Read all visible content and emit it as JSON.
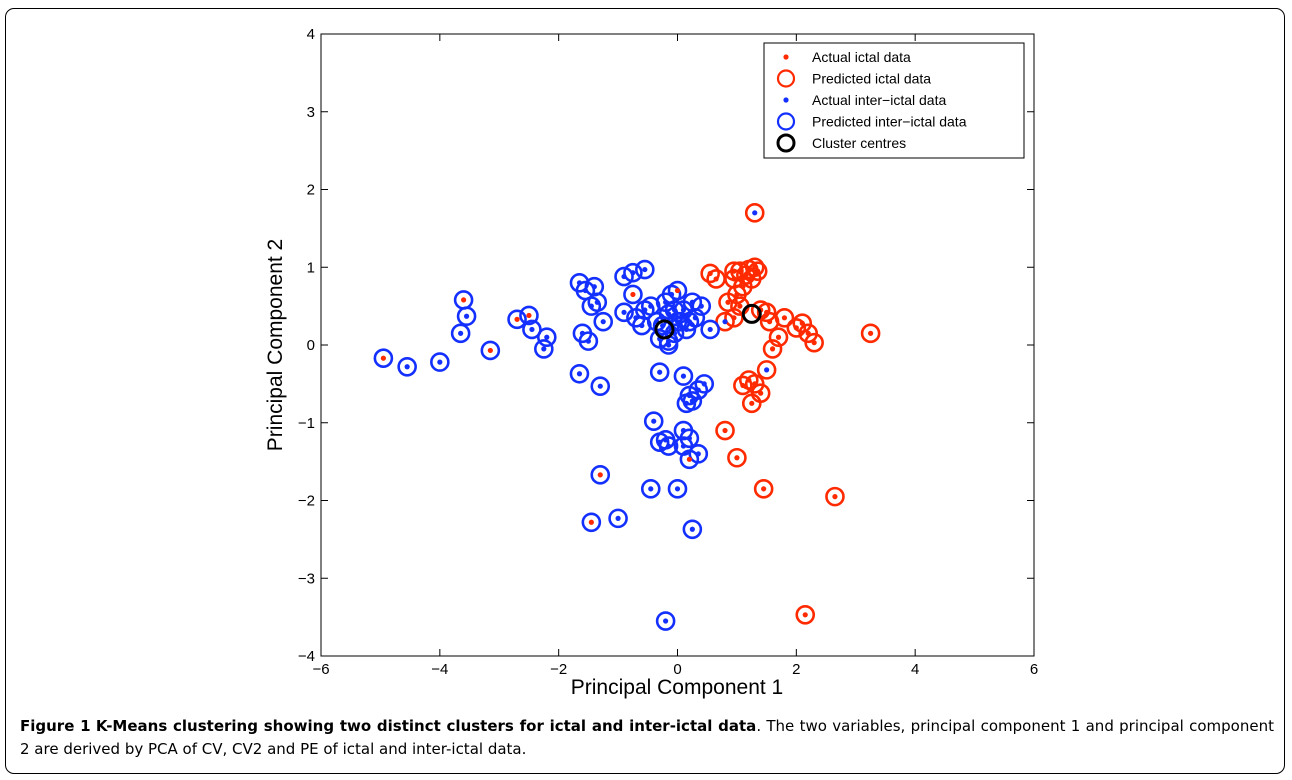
{
  "chart_data": {
    "type": "scatter",
    "xlabel": "Principal Component 1",
    "ylabel": "Principal Component 2",
    "xlim": [
      -6,
      6
    ],
    "ylim": [
      -4,
      4
    ],
    "xticks": [
      "−6",
      "−4",
      "−2",
      "0",
      "2",
      "4",
      "6"
    ],
    "yticks": [
      "−4",
      "−3",
      "−2",
      "−1",
      "0",
      "1",
      "2",
      "3",
      "4"
    ],
    "grid": false,
    "legend_position": "top-right",
    "colors": {
      "ictal": "#ff2a00",
      "interictal": "#1430ff",
      "centre": "#000000"
    },
    "legend": [
      {
        "label": "Actual ictal data",
        "marker": "dot",
        "color": "#ff2a00"
      },
      {
        "label": "Predicted ictal data",
        "marker": "ring",
        "color": "#ff2a00"
      },
      {
        "label": "Actual inter−ictal data",
        "marker": "dot",
        "color": "#1430ff"
      },
      {
        "label": "Predicted inter−ictal data",
        "marker": "ring",
        "color": "#1430ff"
      },
      {
        "label": "Cluster centres",
        "marker": "ring",
        "color": "#000000"
      }
    ],
    "points": [
      [
        1.3,
        1.7,
        "b",
        "r"
      ],
      [
        3.25,
        0.15,
        "r",
        "r"
      ],
      [
        2.65,
        -1.95,
        "r",
        "r"
      ],
      [
        2.15,
        -3.47,
        "r",
        "r"
      ],
      [
        1.45,
        -1.85,
        "r",
        "r"
      ],
      [
        1.0,
        -1.45,
        "r",
        "r"
      ],
      [
        0.8,
        -1.1,
        "r",
        "r"
      ],
      [
        1.5,
        -0.32,
        "b",
        "r"
      ],
      [
        1.6,
        -0.05,
        "r",
        "r"
      ],
      [
        1.4,
        -0.62,
        "r",
        "r"
      ],
      [
        1.25,
        -0.75,
        "r",
        "r"
      ],
      [
        1.1,
        -0.52,
        "r",
        "r"
      ],
      [
        1.2,
        -0.45,
        "r",
        "r"
      ],
      [
        1.3,
        -0.5,
        "r",
        "r"
      ],
      [
        2.3,
        0.03,
        "r",
        "r"
      ],
      [
        2.2,
        0.15,
        "r",
        "r"
      ],
      [
        2.1,
        0.28,
        "r",
        "r"
      ],
      [
        2.0,
        0.22,
        "r",
        "r"
      ],
      [
        1.7,
        0.1,
        "r",
        "r"
      ],
      [
        1.8,
        0.35,
        "r",
        "r"
      ],
      [
        1.55,
        0.3,
        "r",
        "r"
      ],
      [
        1.5,
        0.42,
        "r",
        "r"
      ],
      [
        1.4,
        0.45,
        "r",
        "r"
      ],
      [
        0.95,
        0.35,
        "r",
        "r"
      ],
      [
        0.8,
        0.3,
        "b",
        "r"
      ],
      [
        1.05,
        0.5,
        "r",
        "r"
      ],
      [
        1.0,
        0.65,
        "r",
        "r"
      ],
      [
        1.1,
        0.75,
        "r",
        "r"
      ],
      [
        0.95,
        0.85,
        "r",
        "r"
      ],
      [
        1.15,
        0.9,
        "r",
        "r"
      ],
      [
        1.25,
        0.85,
        "r",
        "r"
      ],
      [
        1.2,
        0.97,
        "r",
        "r"
      ],
      [
        1.3,
        1.0,
        "r",
        "r"
      ],
      [
        1.05,
        0.95,
        "r",
        "r"
      ],
      [
        0.95,
        0.95,
        "r",
        "r"
      ],
      [
        1.35,
        0.95,
        "r",
        "r"
      ],
      [
        0.55,
        0.92,
        "r",
        "r"
      ],
      [
        0.65,
        0.85,
        "r",
        "r"
      ],
      [
        0.85,
        0.55,
        "r",
        "r"
      ],
      [
        -4.95,
        -0.17,
        "r",
        "b"
      ],
      [
        -4.55,
        -0.28,
        "b",
        "b"
      ],
      [
        -4.0,
        -0.22,
        "b",
        "b"
      ],
      [
        -3.6,
        0.58,
        "r",
        "b"
      ],
      [
        -3.55,
        0.37,
        "b",
        "b"
      ],
      [
        -3.65,
        0.15,
        "b",
        "b"
      ],
      [
        -3.15,
        -0.07,
        "r",
        "b"
      ],
      [
        -2.7,
        0.33,
        "r",
        "b"
      ],
      [
        -2.5,
        0.38,
        "r",
        "b"
      ],
      [
        -2.45,
        0.2,
        "b",
        "b"
      ],
      [
        -2.25,
        -0.05,
        "b",
        "b"
      ],
      [
        -2.2,
        0.1,
        "b",
        "b"
      ],
      [
        -1.65,
        0.8,
        "b",
        "b"
      ],
      [
        -1.55,
        0.7,
        "b",
        "b"
      ],
      [
        -1.45,
        0.5,
        "b",
        "b"
      ],
      [
        -1.4,
        0.75,
        "b",
        "b"
      ],
      [
        -1.35,
        0.55,
        "b",
        "b"
      ],
      [
        -1.25,
        0.3,
        "b",
        "b"
      ],
      [
        -1.6,
        0.15,
        "b",
        "b"
      ],
      [
        -1.5,
        0.05,
        "b",
        "b"
      ],
      [
        -1.65,
        -0.37,
        "b",
        "b"
      ],
      [
        -1.3,
        -0.53,
        "b",
        "b"
      ],
      [
        -0.9,
        0.88,
        "b",
        "b"
      ],
      [
        -0.75,
        0.93,
        "b",
        "b"
      ],
      [
        -0.55,
        0.97,
        "b",
        "b"
      ],
      [
        -0.75,
        0.65,
        "r",
        "b"
      ],
      [
        -0.9,
        0.42,
        "b",
        "b"
      ],
      [
        -0.7,
        0.35,
        "b",
        "b"
      ],
      [
        -0.55,
        0.45,
        "b",
        "b"
      ],
      [
        -0.45,
        0.5,
        "b",
        "b"
      ],
      [
        -0.6,
        0.25,
        "b",
        "b"
      ],
      [
        -0.35,
        0.3,
        "b",
        "b"
      ],
      [
        -0.25,
        0.25,
        "b",
        "b"
      ],
      [
        -0.15,
        0.4,
        "b",
        "b"
      ],
      [
        -0.05,
        0.15,
        "b",
        "b"
      ],
      [
        -0.1,
        0.65,
        "b",
        "b"
      ],
      [
        0.0,
        0.7,
        "r",
        "b"
      ],
      [
        0.1,
        0.45,
        "b",
        "b"
      ],
      [
        0.05,
        0.3,
        "b",
        "b"
      ],
      [
        0.15,
        0.2,
        "b",
        "b"
      ],
      [
        -0.2,
        0.55,
        "b",
        "b"
      ],
      [
        -0.3,
        0.08,
        "b",
        "b"
      ],
      [
        -0.15,
        0.05,
        "b",
        "b"
      ],
      [
        0.25,
        0.55,
        "b",
        "b"
      ],
      [
        0.3,
        0.35,
        "b",
        "b"
      ],
      [
        0.4,
        0.5,
        "b",
        "b"
      ],
      [
        0.2,
        0.3,
        "b",
        "b"
      ],
      [
        0.55,
        0.2,
        "b",
        "b"
      ],
      [
        -0.15,
        0.0,
        "b",
        "b"
      ],
      [
        0.0,
        0.3,
        "b",
        "b"
      ],
      [
        -0.05,
        0.45,
        "b",
        "b"
      ],
      [
        -0.3,
        -0.35,
        "b",
        "b"
      ],
      [
        0.1,
        -0.4,
        "b",
        "b"
      ],
      [
        0.45,
        -0.5,
        "b",
        "b"
      ],
      [
        0.35,
        -0.58,
        "b",
        "b"
      ],
      [
        0.15,
        -0.75,
        "b",
        "b"
      ],
      [
        0.2,
        -0.65,
        "b",
        "b"
      ],
      [
        0.25,
        -0.72,
        "b",
        "b"
      ],
      [
        -0.4,
        -0.98,
        "b",
        "b"
      ],
      [
        -0.3,
        -1.25,
        "b",
        "b"
      ],
      [
        -0.15,
        -1.3,
        "b",
        "b"
      ],
      [
        -0.2,
        -1.22,
        "b",
        "b"
      ],
      [
        0.1,
        -1.1,
        "b",
        "b"
      ],
      [
        0.2,
        -1.2,
        "b",
        "b"
      ],
      [
        0.1,
        -1.3,
        "b",
        "b"
      ],
      [
        0.35,
        -1.4,
        "b",
        "b"
      ],
      [
        0.2,
        -1.47,
        "r",
        "b"
      ],
      [
        -1.3,
        -1.67,
        "r",
        "b"
      ],
      [
        -1.45,
        -2.28,
        "r",
        "b"
      ],
      [
        -1.0,
        -2.23,
        "b",
        "b"
      ],
      [
        -0.45,
        -1.85,
        "b",
        "b"
      ],
      [
        0.0,
        -1.85,
        "b",
        "b"
      ],
      [
        0.25,
        -2.37,
        "b",
        "b"
      ],
      [
        -0.2,
        -3.55,
        "b",
        "b"
      ]
    ],
    "cluster_centres": [
      [
        -0.22,
        0.2
      ],
      [
        1.25,
        0.4
      ]
    ]
  },
  "caption": {
    "label": "Figure 1",
    "title": "K-Means clustering showing two distinct clusters for ictal and inter-ictal data",
    "text": ". The two variables, principal component 1 and principal component 2 are derived by PCA of CV, CV2 and PE of ictal and inter-ictal data."
  }
}
